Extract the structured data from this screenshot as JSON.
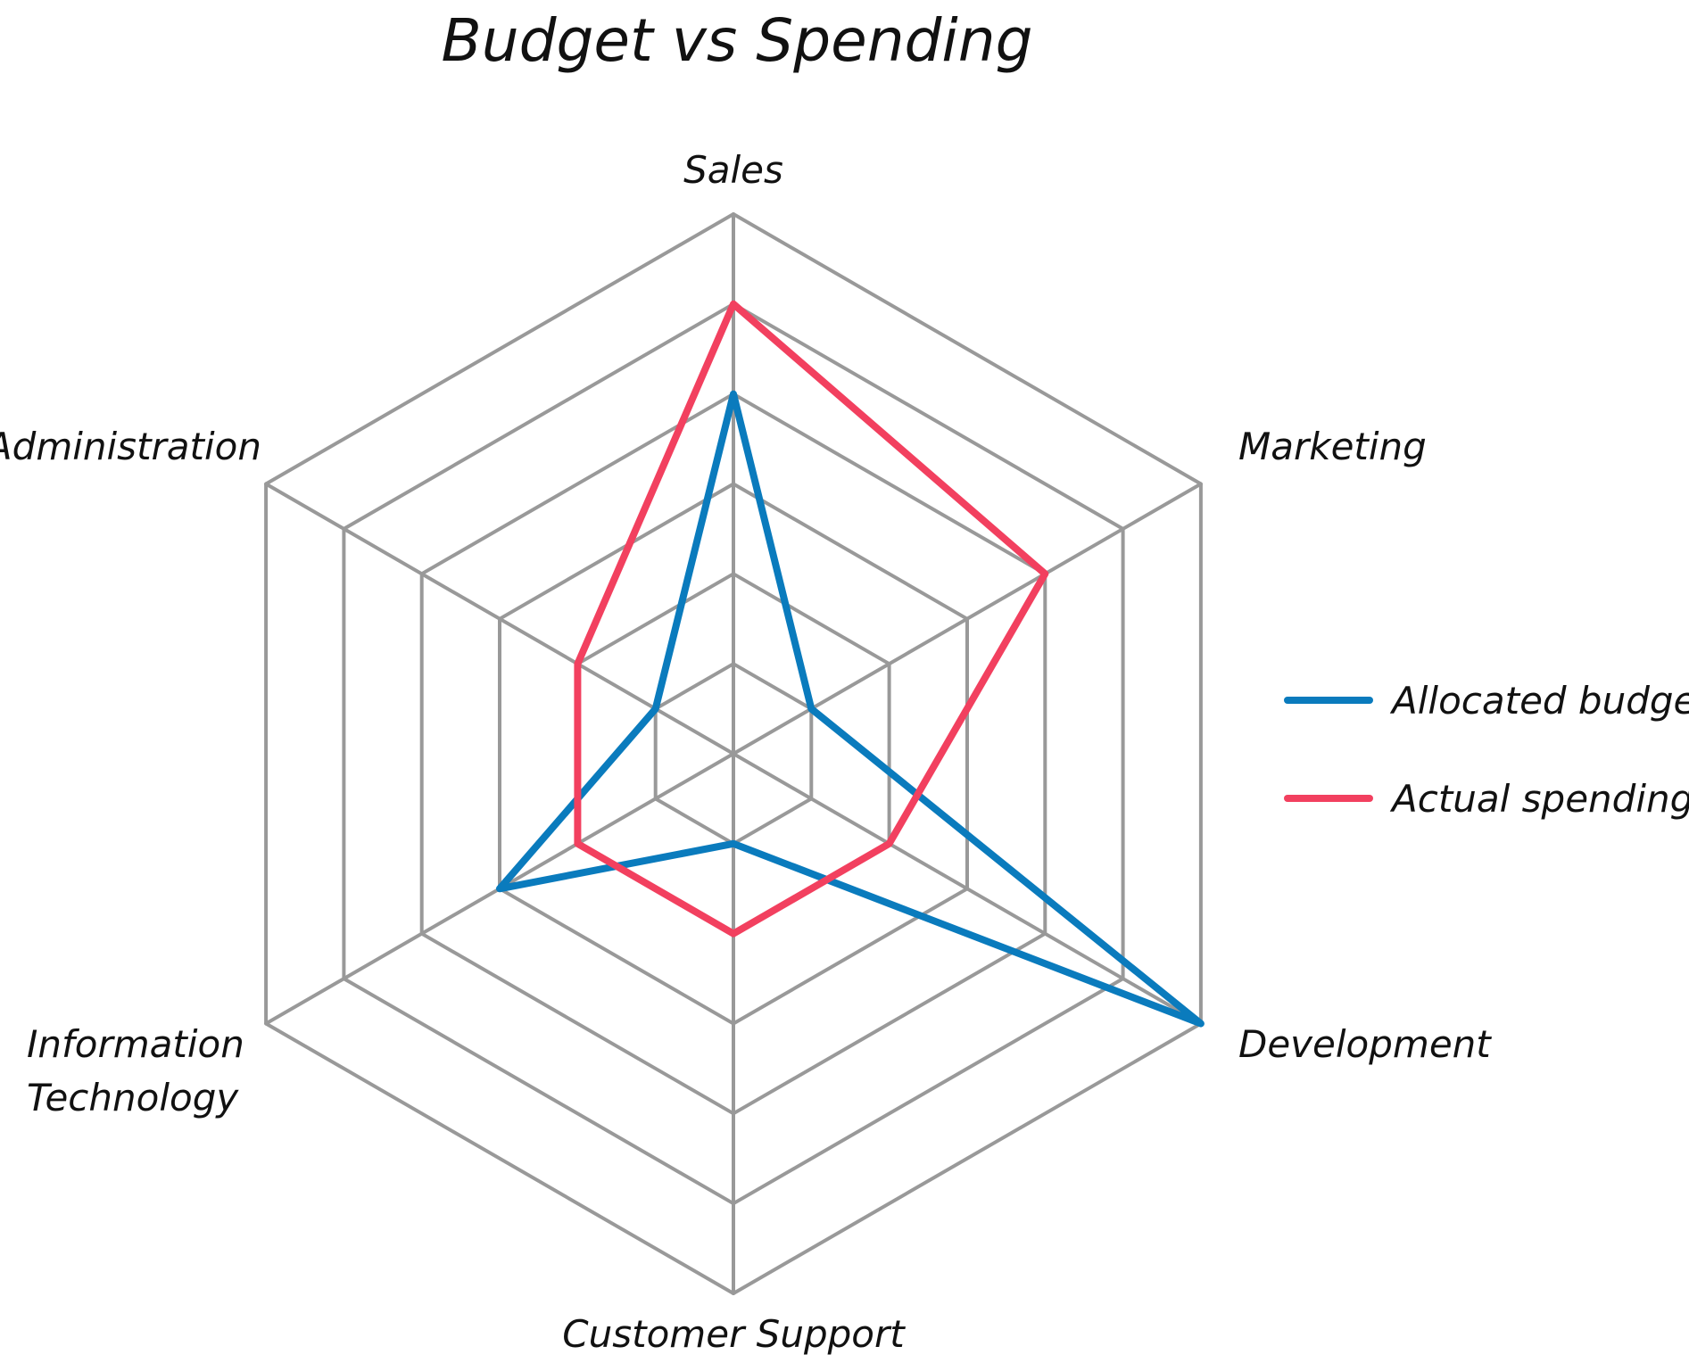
{
  "chart_data": {
    "type": "radar",
    "title": "Budget vs Spending",
    "categories": [
      [
        "Sales"
      ],
      [
        "Marketing"
      ],
      [
        "Development"
      ],
      [
        "Customer Support"
      ],
      [
        "Information",
        "Technology"
      ],
      [
        "Administration"
      ]
    ],
    "series": [
      {
        "name": "Allocated budget",
        "color": "#0a7bbd",
        "values": [
          4,
          1,
          6,
          1,
          3,
          1
        ]
      },
      {
        "name": "Actual spending",
        "color": "#f2405f",
        "values": [
          5,
          4,
          2,
          2,
          2,
          2
        ]
      }
    ],
    "rlim": [
      0,
      6
    ],
    "grid_levels": 6,
    "grid": true,
    "grid_color": "#999999",
    "legend": "right"
  }
}
